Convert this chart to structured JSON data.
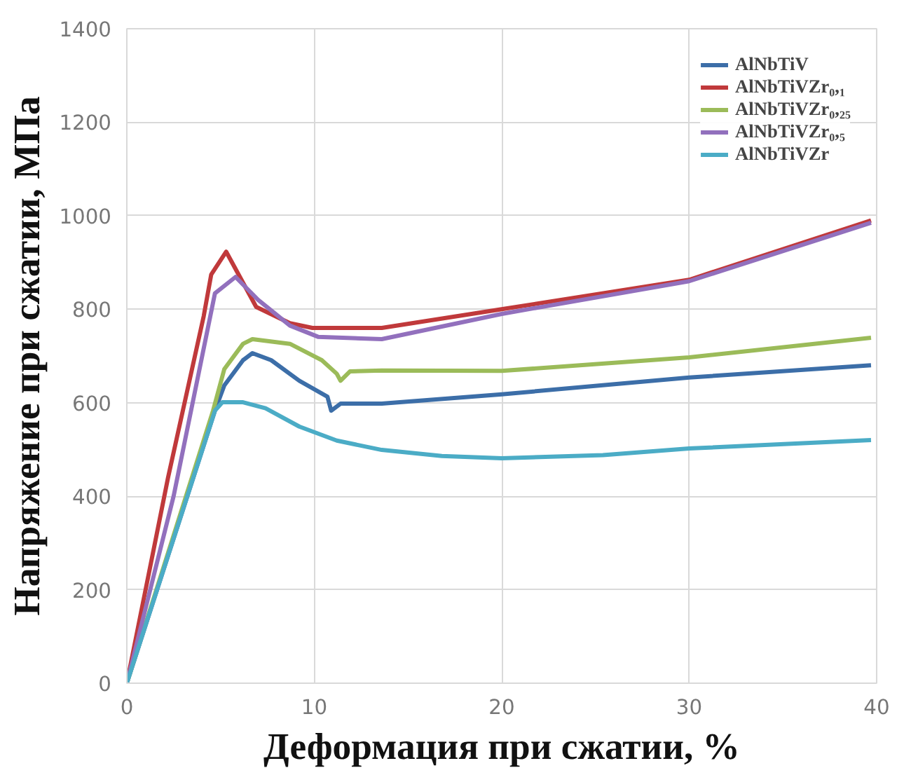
{
  "chart_data": {
    "type": "line",
    "xlabel": "Деформация при сжатии, %",
    "ylabel": "Напряжение при сжатии, МПа",
    "xlim": [
      0,
      40
    ],
    "xticks": [
      0,
      10,
      20,
      30,
      40
    ],
    "ylim": [
      0,
      1400
    ],
    "yticks": [
      0,
      200,
      400,
      600,
      800,
      1000,
      1200,
      1400
    ],
    "grid": true,
    "legend": "top right",
    "marker": "none",
    "line_style": "solid",
    "series": [
      {
        "name": "AlNbTiV",
        "color": "#3c6ea8",
        "x": [
          0,
          4.7,
          5.2,
          6.2,
          6.7,
          7.7,
          9.2,
          10.7,
          10.9,
          11.4,
          13.6,
          20,
          30,
          39.7
        ],
        "values": [
          0,
          583,
          637,
          691,
          706,
          691,
          647,
          613,
          583,
          598,
          598,
          618,
          654,
          680
        ]
      },
      {
        "name": "AlNbTiVZr₀,₁",
        "color": "#c0393b",
        "x": [
          0,
          2.2,
          4.1,
          4.5,
          5.3,
          6.9,
          8.7,
          9.9,
          13.6,
          20,
          30,
          39.7
        ],
        "values": [
          0,
          440,
          785,
          874,
          923,
          805,
          770,
          760,
          760,
          800,
          863,
          990
        ]
      },
      {
        "name": "AlNbTiVZr₀,₂₅",
        "color": "#9bbb59",
        "x": [
          0,
          4.6,
          5.2,
          6.2,
          6.7,
          8.7,
          10.4,
          11.2,
          11.4,
          11.9,
          13.6,
          20,
          30,
          39.7
        ],
        "values": [
          0,
          583,
          672,
          726,
          736,
          726,
          691,
          662,
          647,
          667,
          669,
          668,
          697,
          739
        ]
      },
      {
        "name": "AlNbTiVZr₀,₅",
        "color": "#9270bd",
        "x": [
          0,
          2.5,
          4.7,
          5.8,
          7.0,
          8.7,
          10.2,
          13.6,
          20,
          30,
          39.7
        ],
        "values": [
          0,
          401,
          834,
          869,
          820,
          765,
          741,
          736,
          790,
          860,
          985
        ]
      },
      {
        "name": "AlNbTiVZr",
        "color": "#4bacc6",
        "x": [
          0,
          4.7,
          5.1,
          6.2,
          7.4,
          9.2,
          11.2,
          13.6,
          16.8,
          20,
          25.4,
          30,
          39.7
        ],
        "values": [
          0,
          583,
          601,
          601,
          588,
          549,
          519,
          499,
          486,
          481,
          488,
          502,
          520
        ]
      }
    ]
  }
}
